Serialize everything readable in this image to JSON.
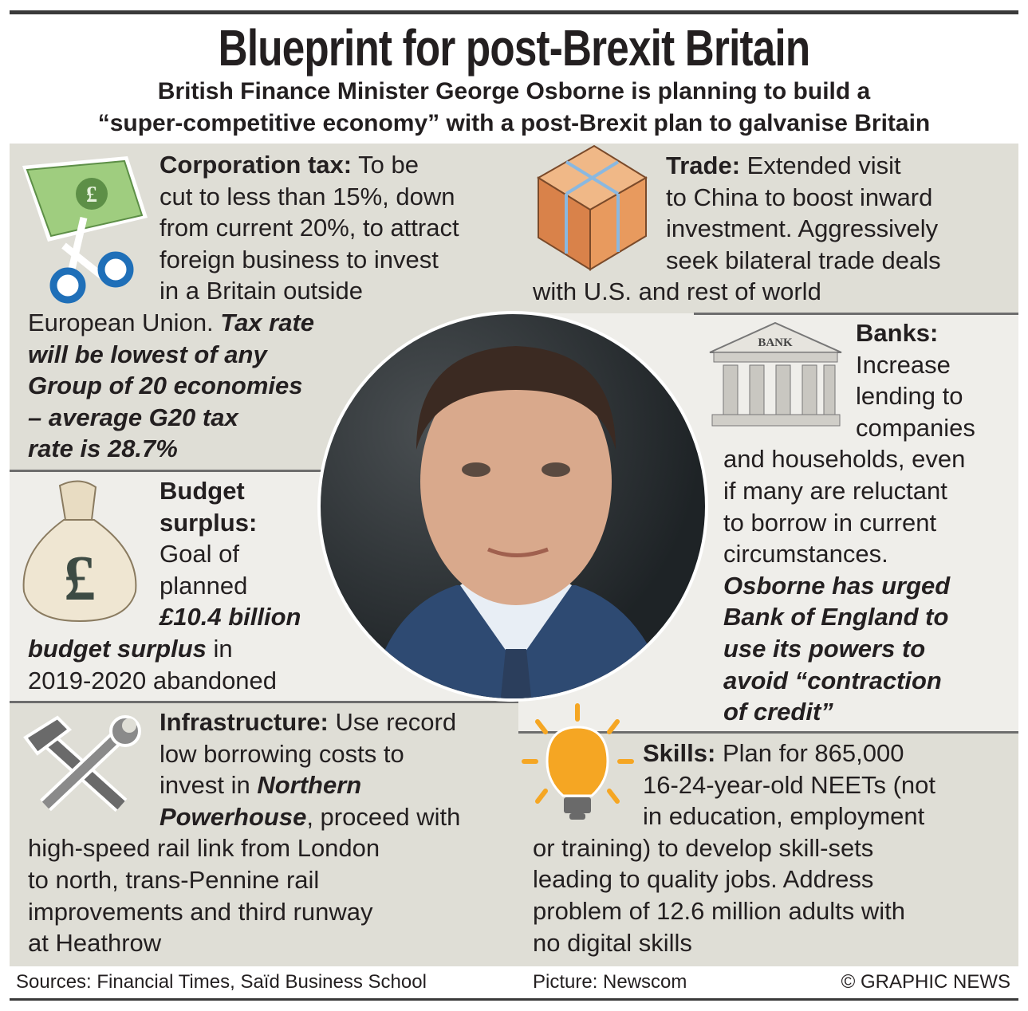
{
  "title": "Blueprint for post-Brexit Britain",
  "subtitle": [
    "British Finance Minister George Osborne is planning to build a",
    "“super-competitive economy” with a post-Brexit plan to galvanise Britain"
  ],
  "sections": {
    "corporation_tax": {
      "icon": "banknote-scissors-icon",
      "lines": [
        [
          {
            "t": "Corporation tax:",
            "s": "b"
          },
          {
            "t": " To be",
            "s": "n"
          }
        ],
        [
          {
            "t": "cut to less than 15%, down",
            "s": "n"
          }
        ],
        [
          {
            "t": "from current 20%, to attract",
            "s": "n"
          }
        ],
        [
          {
            "t": "foreign business to invest",
            "s": "n"
          }
        ],
        [
          {
            "t": "in a Britain outside",
            "s": "n"
          }
        ],
        [
          {
            "t": "European Union. ",
            "s": "n"
          },
          {
            "t": "Tax rate",
            "s": "bi"
          }
        ],
        [
          {
            "t": "will be lowest of any",
            "s": "bi"
          }
        ],
        [
          {
            "t": "Group of 20 economies",
            "s": "bi"
          }
        ],
        [
          {
            "t": "– average G20 tax",
            "s": "bi"
          }
        ],
        [
          {
            "t": "rate is 28.7%",
            "s": "bi"
          }
        ]
      ]
    },
    "trade": {
      "icon": "shipping-crate-icon",
      "lines": [
        [
          {
            "t": "Trade:",
            "s": "b"
          },
          {
            "t": " Extended visit",
            "s": "n"
          }
        ],
        [
          {
            "t": "to China to boost inward",
            "s": "n"
          }
        ],
        [
          {
            "t": "investment. Aggressively",
            "s": "n"
          }
        ],
        [
          {
            "t": "seek bilateral trade deals",
            "s": "n"
          }
        ],
        [
          {
            "t": "with U.S. and rest of world",
            "s": "n"
          }
        ]
      ]
    },
    "banks": {
      "icon": "bank-building-icon",
      "icon_label": "BANK",
      "lines": [
        [
          {
            "t": "Banks:",
            "s": "b"
          }
        ],
        [
          {
            "t": "Increase",
            "s": "n"
          }
        ],
        [
          {
            "t": "lending to",
            "s": "n"
          }
        ],
        [
          {
            "t": "companies",
            "s": "n"
          }
        ],
        [
          {
            "t": "and households, even",
            "s": "n"
          }
        ],
        [
          {
            "t": "if many are reluctant",
            "s": "n"
          }
        ],
        [
          {
            "t": "to borrow in current",
            "s": "n"
          }
        ],
        [
          {
            "t": "circumstances.",
            "s": "n"
          }
        ],
        [
          {
            "t": "Osborne has urged",
            "s": "bi"
          }
        ],
        [
          {
            "t": "Bank of England to",
            "s": "bi"
          }
        ],
        [
          {
            "t": "use its powers to",
            "s": "bi"
          }
        ],
        [
          {
            "t": "avoid “contraction",
            "s": "bi"
          }
        ],
        [
          {
            "t": "of credit”",
            "s": "bi"
          }
        ]
      ]
    },
    "budget": {
      "icon": "money-bag-pound-icon",
      "lines": [
        [
          {
            "t": "Budget",
            "s": "b"
          }
        ],
        [
          {
            "t": "surplus:",
            "s": "b"
          }
        ],
        [
          {
            "t": "Goal of",
            "s": "n"
          }
        ],
        [
          {
            "t": "planned",
            "s": "n"
          }
        ],
        [
          {
            "t": "£10.4 billion",
            "s": "bi"
          }
        ],
        [
          {
            "t": "budget surplus",
            "s": "bi"
          },
          {
            "t": " in",
            "s": "n"
          }
        ],
        [
          {
            "t": "2019-2020 abandoned",
            "s": "n"
          }
        ]
      ]
    },
    "infrastructure": {
      "icon": "hammer-wrench-icon",
      "lines": [
        [
          {
            "t": "Infrastructure:",
            "s": "b"
          },
          {
            "t": " Use record",
            "s": "n"
          }
        ],
        [
          {
            "t": "low borrowing costs to",
            "s": "n"
          }
        ],
        [
          {
            "t": "invest in ",
            "s": "n"
          },
          {
            "t": "Northern",
            "s": "bi"
          }
        ],
        [
          {
            "t": "Powerhouse",
            "s": "bi"
          },
          {
            "t": ", proceed with",
            "s": "n"
          }
        ],
        [
          {
            "t": "high-speed rail link from London",
            "s": "n"
          }
        ],
        [
          {
            "t": "to north, trans-Pennine rail",
            "s": "n"
          }
        ],
        [
          {
            "t": "improvements and third runway",
            "s": "n"
          }
        ],
        [
          {
            "t": "at Heathrow",
            "s": "n"
          }
        ]
      ]
    },
    "skills": {
      "icon": "lightbulb-icon",
      "lines": [
        [
          {
            "t": "Skills:",
            "s": "b"
          },
          {
            "t": " Plan for 865,000",
            "s": "n"
          }
        ],
        [
          {
            "t": "16-24-year-old NEETs (not",
            "s": "n"
          }
        ],
        [
          {
            "t": "in education, employment",
            "s": "n"
          }
        ],
        [
          {
            "t": "or training) to develop skill-sets",
            "s": "n"
          }
        ],
        [
          {
            "t": "leading to quality jobs. Address",
            "s": "n"
          }
        ],
        [
          {
            "t": "problem of 12.6 million adults with",
            "s": "n"
          }
        ],
        [
          {
            "t": "no digital skills",
            "s": "n"
          }
        ]
      ]
    }
  },
  "photo": {
    "subject": "portrait-photo"
  },
  "footer": {
    "sources": "Sources: Financial Times, Saïd Business School",
    "picture": "Picture: Newscom",
    "credit": "© GRAPHIC NEWS"
  },
  "colors": {
    "panel_dark": "#dfded6",
    "panel_light": "#efeeea",
    "bulb": "#f5a623",
    "scissors": "#1f6fb8",
    "banknote": "#9fcd7f"
  }
}
